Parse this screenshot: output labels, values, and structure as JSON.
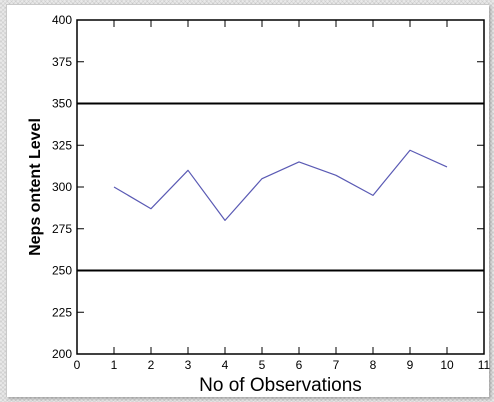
{
  "chart_data": {
    "type": "line",
    "title": "",
    "xlabel": "No of Observations",
    "ylabel": "Neps ontent Level",
    "xlim": [
      0,
      11
    ],
    "ylim": [
      200,
      400
    ],
    "x_ticks": [
      0,
      1,
      2,
      3,
      4,
      5,
      6,
      7,
      8,
      9,
      10,
      11
    ],
    "y_ticks": [
      200,
      225,
      250,
      275,
      300,
      325,
      350,
      375,
      400
    ],
    "grid": false,
    "series": [
      {
        "x": [
          1,
          2,
          3,
          4,
          5,
          6,
          7,
          8,
          9,
          10
        ],
        "y": [
          300,
          287,
          310,
          280,
          305,
          315,
          307,
          295,
          322,
          312
        ],
        "color": "#5a5ab4"
      }
    ],
    "control_limits": [
      {
        "y": 350,
        "color": "#000000"
      },
      {
        "y": 250,
        "color": "#000000"
      }
    ]
  }
}
